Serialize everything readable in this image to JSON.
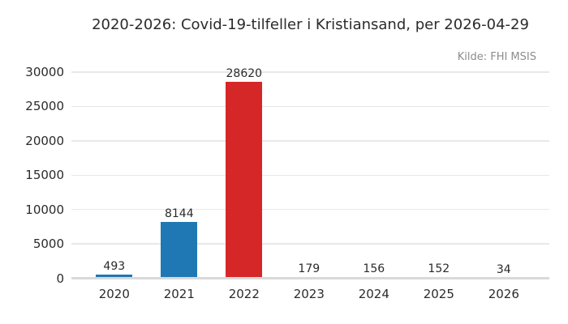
{
  "colors": {
    "background": "#ffffff",
    "grid": "#e8e8e8",
    "axis_band": "#d9d9d9",
    "text": "#2b2b2b",
    "source_text": "#8c8c8c",
    "bar_blue": "#1f77b4",
    "bar_red": "#d62728"
  },
  "chart_data": {
    "type": "bar",
    "title": "2020-2026: Covid-19-tilfeller i Kristiansand, per 2026-04-29",
    "source": "Kilde: FHI MSIS",
    "categories": [
      "2020",
      "2021",
      "2022",
      "2023",
      "2024",
      "2025",
      "2026"
    ],
    "values": [
      493,
      8144,
      28620,
      179,
      156,
      152,
      34
    ],
    "value_labels": [
      "493",
      "8144",
      "28620",
      "179",
      "156",
      "152",
      "34"
    ],
    "bar_colors": [
      "#1f77b4",
      "#1f77b4",
      "#d62728",
      "#1f77b4",
      "#1f77b4",
      "#1f77b4",
      "#1f77b4"
    ],
    "xlabel": "",
    "ylabel": "",
    "ylim": [
      0,
      30000
    ],
    "yticks": [
      0,
      5000,
      10000,
      15000,
      20000,
      25000,
      30000
    ],
    "grid": true,
    "legend": "none",
    "value_labels_shown": true
  }
}
